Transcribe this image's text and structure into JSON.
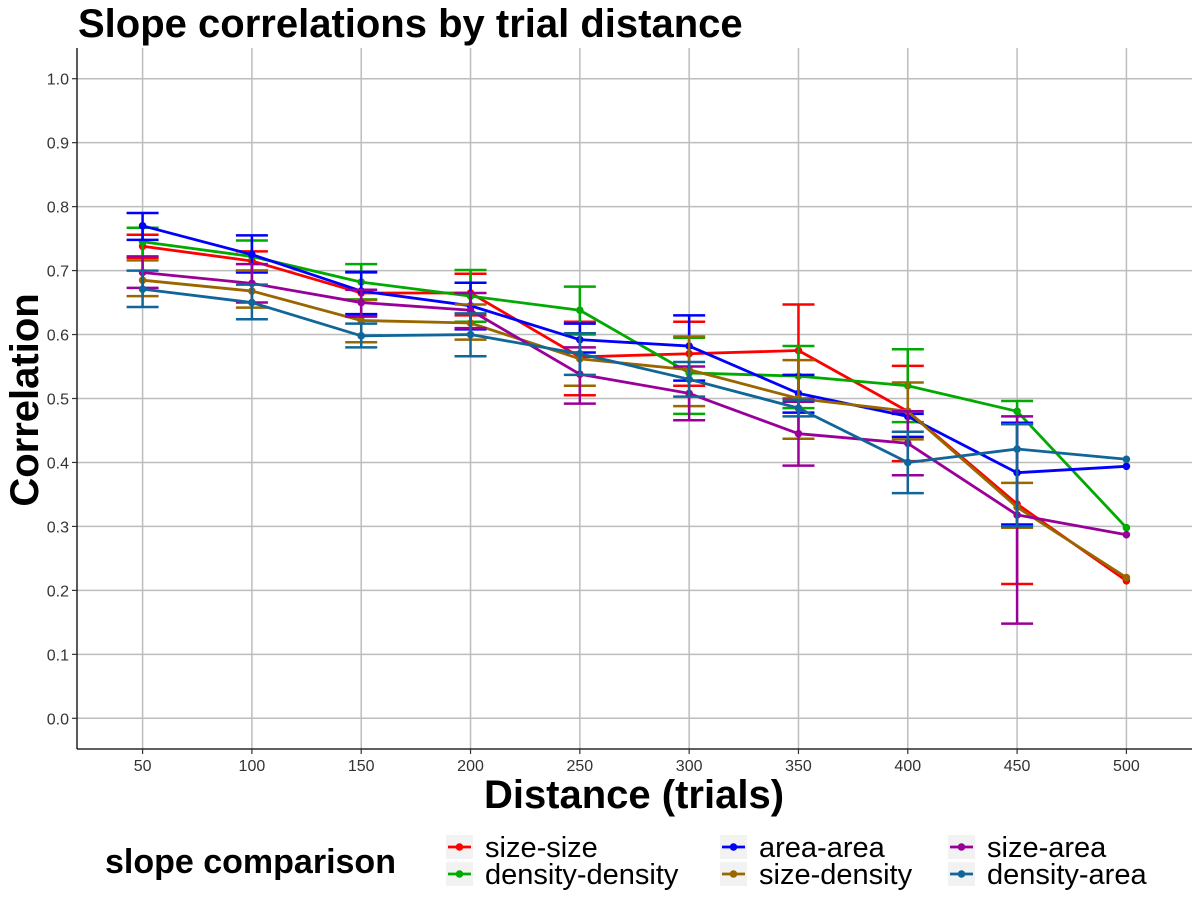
{
  "chart_data": {
    "type": "line",
    "title": "Slope correlations by trial distance",
    "xlabel": "Distance (trials)",
    "ylabel": "Correlation",
    "x": [
      50,
      100,
      150,
      200,
      250,
      300,
      350,
      400,
      450,
      500
    ],
    "xlim": [
      20,
      530
    ],
    "ylim": [
      -0.048,
      1.048
    ],
    "yticks": [
      0.0,
      0.1,
      0.2,
      0.3,
      0.4,
      0.5,
      0.6,
      0.7,
      0.8,
      0.9,
      1.0
    ],
    "ytick_labels": [
      "0.0",
      "0.1",
      "0.2",
      "0.3",
      "0.4",
      "0.5",
      "0.6",
      "0.7",
      "0.8",
      "0.9",
      "1.0"
    ],
    "xtick_labels": [
      "50",
      "100",
      "150",
      "200",
      "250",
      "300",
      "350",
      "400",
      "450",
      "500"
    ],
    "grid": true,
    "legend": {
      "title": "slope comparison",
      "position": "bottom"
    },
    "series": [
      {
        "name": "size-size",
        "color": "#ff0000",
        "values": [
          0.738,
          0.715,
          0.665,
          0.665,
          0.565,
          0.57,
          0.575,
          0.48,
          0.335,
          0.215
        ],
        "err_low": [
          0.72,
          0.7,
          0.63,
          0.63,
          0.505,
          0.52,
          0.5,
          0.402,
          0.21,
          null
        ],
        "err_high": [
          0.756,
          0.73,
          0.697,
          0.695,
          0.62,
          0.62,
          0.647,
          0.551,
          0.46,
          null
        ]
      },
      {
        "name": "density-density",
        "color": "#00aa00",
        "values": [
          0.745,
          0.722,
          0.682,
          0.66,
          0.638,
          0.54,
          0.535,
          0.52,
          0.48,
          0.298
        ],
        "err_low": [
          0.722,
          0.7,
          0.655,
          0.62,
          0.6,
          0.476,
          0.485,
          0.463,
          0.46,
          null
        ],
        "err_high": [
          0.767,
          0.747,
          0.71,
          0.701,
          0.675,
          0.595,
          0.582,
          0.577,
          0.496,
          null
        ]
      },
      {
        "name": "area-area",
        "color": "#0000ff",
        "values": [
          0.77,
          0.725,
          0.668,
          0.645,
          0.592,
          0.582,
          0.508,
          0.472,
          0.384,
          0.394
        ],
        "err_low": [
          0.748,
          0.697,
          0.632,
          0.608,
          0.572,
          0.528,
          0.478,
          0.44,
          0.303,
          null
        ],
        "err_high": [
          0.79,
          0.755,
          0.698,
          0.681,
          0.617,
          0.63,
          0.537,
          0.476,
          0.462,
          null
        ]
      },
      {
        "name": "size-density",
        "color": "#996600",
        "values": [
          0.685,
          0.668,
          0.622,
          0.618,
          0.562,
          0.545,
          0.5,
          0.48,
          0.33,
          0.22
        ],
        "err_low": [
          0.66,
          0.642,
          0.588,
          0.592,
          0.52,
          0.488,
          0.437,
          0.436,
          0.298,
          null
        ],
        "err_high": [
          0.716,
          0.7,
          0.654,
          0.647,
          0.602,
          0.597,
          0.56,
          0.525,
          0.368,
          null
        ]
      },
      {
        "name": "size-area",
        "color": "#990099",
        "values": [
          0.697,
          0.68,
          0.65,
          0.638,
          0.538,
          0.508,
          0.445,
          0.43,
          0.318,
          0.287
        ],
        "err_low": [
          0.673,
          0.65,
          0.628,
          0.61,
          0.492,
          0.466,
          0.395,
          0.38,
          0.148,
          null
        ],
        "err_high": [
          0.722,
          0.71,
          0.67,
          0.665,
          0.58,
          0.55,
          0.495,
          0.48,
          0.472,
          null
        ]
      },
      {
        "name": "density-area",
        "color": "#116699",
        "values": [
          0.671,
          0.65,
          0.598,
          0.6,
          0.57,
          0.53,
          0.485,
          0.4,
          0.421,
          0.405
        ],
        "err_low": [
          0.643,
          0.624,
          0.58,
          0.566,
          0.537,
          0.503,
          0.472,
          0.352,
          0.3,
          null
        ],
        "err_high": [
          0.7,
          0.678,
          0.617,
          0.633,
          0.602,
          0.557,
          0.498,
          0.448,
          0.46,
          null
        ]
      }
    ]
  }
}
